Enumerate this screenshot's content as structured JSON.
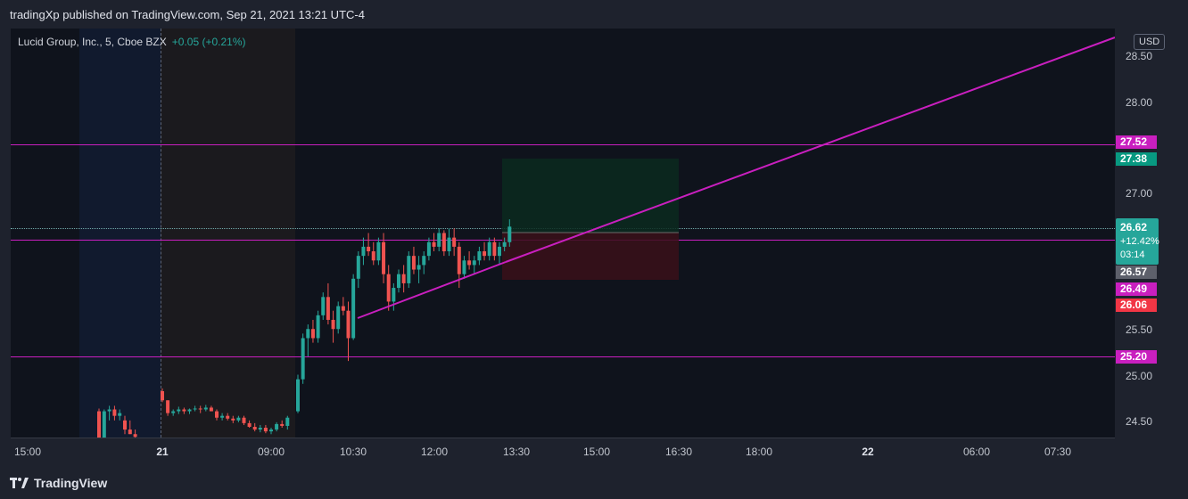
{
  "header": {
    "published_text": "tradingXp published on TradingView.com, Sep 21, 2021 13:21 UTC-4"
  },
  "legend": {
    "symbol_text": "Lucid Group, Inc., 5, Cboe BZX",
    "change_text": "+0.05 (+0.21%)"
  },
  "price_axis": {
    "currency_button": "USD",
    "ticks": [
      "28.50",
      "28.00",
      "27.00",
      "25.50",
      "25.00",
      "24.50"
    ],
    "labels": {
      "line_upper": "27.52",
      "target": "27.38",
      "current_price": "26.62",
      "current_change": "+12.42%",
      "countdown": "03:14",
      "prev": "26.57",
      "line_mid": "26.49",
      "stop": "26.06",
      "line_lower": "25.20"
    },
    "colors": {
      "magenta": "#c91fbf",
      "green": "#089981",
      "red": "#f23645",
      "teal": "#26a69a",
      "gray": "#5d606b"
    }
  },
  "time_axis": {
    "ticks": [
      "15:00",
      "21",
      "09:00",
      "10:30",
      "12:00",
      "13:30",
      "15:00",
      "16:30",
      "18:00",
      "22",
      "06:00",
      "07:30"
    ]
  },
  "chart_data": {
    "type": "candlestick",
    "symbol": "Lucid Group, Inc.",
    "interval": "5",
    "exchange": "Cboe BZX",
    "ylim": [
      24.3,
      28.75
    ],
    "horizontal_lines": [
      27.52,
      26.49,
      25.2
    ],
    "position": {
      "entry": 26.57,
      "target": 27.38,
      "stop": 26.06
    },
    "trendline_points": [
      [
        25.65,
        0
      ],
      [
        28.7,
        1
      ]
    ],
    "candles": [
      [
        24.6,
        24.63,
        24.28,
        24.3
      ],
      [
        24.3,
        24.62,
        24.28,
        24.6
      ],
      [
        24.6,
        24.66,
        24.5,
        24.62
      ],
      [
        24.62,
        24.66,
        24.5,
        24.55
      ],
      [
        24.55,
        24.62,
        24.5,
        24.58
      ],
      [
        24.5,
        24.55,
        24.35,
        24.4
      ],
      [
        24.4,
        24.5,
        24.35,
        24.35
      ],
      [
        24.35,
        24.4,
        24.3,
        24.32
      ],
      [
        24.82,
        24.85,
        24.7,
        24.72
      ],
      [
        24.72,
        24.72,
        24.55,
        24.58
      ],
      [
        24.58,
        24.62,
        24.55,
        24.6
      ],
      [
        24.6,
        24.65,
        24.57,
        24.62
      ],
      [
        24.62,
        24.64,
        24.57,
        24.6
      ],
      [
        24.6,
        24.63,
        24.57,
        24.62
      ],
      [
        24.62,
        24.66,
        24.6,
        24.63
      ],
      [
        24.63,
        24.66,
        24.58,
        24.62
      ],
      [
        24.62,
        24.67,
        24.6,
        24.64
      ],
      [
        24.64,
        24.66,
        24.6,
        24.6
      ],
      [
        24.6,
        24.62,
        24.5,
        24.53
      ],
      [
        24.53,
        24.58,
        24.5,
        24.55
      ],
      [
        24.55,
        24.58,
        24.5,
        24.52
      ],
      [
        24.52,
        24.55,
        24.47,
        24.5
      ],
      [
        24.5,
        24.55,
        24.48,
        24.53
      ],
      [
        24.53,
        24.55,
        24.45,
        24.47
      ],
      [
        24.47,
        24.5,
        24.42,
        24.43
      ],
      [
        24.43,
        24.47,
        24.38,
        24.4
      ],
      [
        24.4,
        24.45,
        24.37,
        24.42
      ],
      [
        24.42,
        24.45,
        24.36,
        24.38
      ],
      [
        24.38,
        24.42,
        24.35,
        24.4
      ],
      [
        24.4,
        24.48,
        24.38,
        24.46
      ],
      [
        24.46,
        24.5,
        24.42,
        24.44
      ],
      [
        24.44,
        24.55,
        24.4,
        24.53
      ],
      [
        24.6,
        25.0,
        24.58,
        24.95
      ],
      [
        24.95,
        25.45,
        24.9,
        25.4
      ],
      [
        25.4,
        25.55,
        25.2,
        25.5
      ],
      [
        25.5,
        25.6,
        25.35,
        25.4
      ],
      [
        25.4,
        25.7,
        25.35,
        25.65
      ],
      [
        25.65,
        25.9,
        25.6,
        25.85
      ],
      [
        25.85,
        26.0,
        25.55,
        25.6
      ],
      [
        25.6,
        25.7,
        25.35,
        25.5
      ],
      [
        25.5,
        25.8,
        25.45,
        25.75
      ],
      [
        25.75,
        25.85,
        25.65,
        25.7
      ],
      [
        25.7,
        25.8,
        25.15,
        25.4
      ],
      [
        25.4,
        26.1,
        25.38,
        26.05
      ],
      [
        26.05,
        26.35,
        25.95,
        26.3
      ],
      [
        26.3,
        26.5,
        26.2,
        26.4
      ],
      [
        26.4,
        26.55,
        26.3,
        26.35
      ],
      [
        26.35,
        26.45,
        26.2,
        26.25
      ],
      [
        26.25,
        26.5,
        26.2,
        26.45
      ],
      [
        26.45,
        26.55,
        26.0,
        26.1
      ],
      [
        26.1,
        26.2,
        25.7,
        25.8
      ],
      [
        25.8,
        26.0,
        25.7,
        25.95
      ],
      [
        25.95,
        26.15,
        25.9,
        26.1
      ],
      [
        26.1,
        26.2,
        25.9,
        26.0
      ],
      [
        26.0,
        26.35,
        25.95,
        26.3
      ],
      [
        26.3,
        26.4,
        26.1,
        26.15
      ],
      [
        26.15,
        26.3,
        26.0,
        26.2
      ],
      [
        26.2,
        26.35,
        26.1,
        26.3
      ],
      [
        26.3,
        26.5,
        26.25,
        26.45
      ],
      [
        26.45,
        26.55,
        26.35,
        26.4
      ],
      [
        26.4,
        26.6,
        26.35,
        26.55
      ],
      [
        26.55,
        26.58,
        26.3,
        26.35
      ],
      [
        26.35,
        26.6,
        26.3,
        26.5
      ],
      [
        26.5,
        26.6,
        26.3,
        26.4
      ],
      [
        26.4,
        26.45,
        25.95,
        26.1
      ],
      [
        26.1,
        26.3,
        26.05,
        26.25
      ],
      [
        26.25,
        26.35,
        26.15,
        26.2
      ],
      [
        26.2,
        26.3,
        26.1,
        26.25
      ],
      [
        26.25,
        26.4,
        26.2,
        26.35
      ],
      [
        26.35,
        26.45,
        26.25,
        26.3
      ],
      [
        26.3,
        26.5,
        26.25,
        26.45
      ],
      [
        26.45,
        26.5,
        26.25,
        26.3
      ],
      [
        26.3,
        26.45,
        26.2,
        26.4
      ],
      [
        26.4,
        26.5,
        26.35,
        26.45
      ],
      [
        26.45,
        26.7,
        26.4,
        26.62
      ]
    ]
  }
}
